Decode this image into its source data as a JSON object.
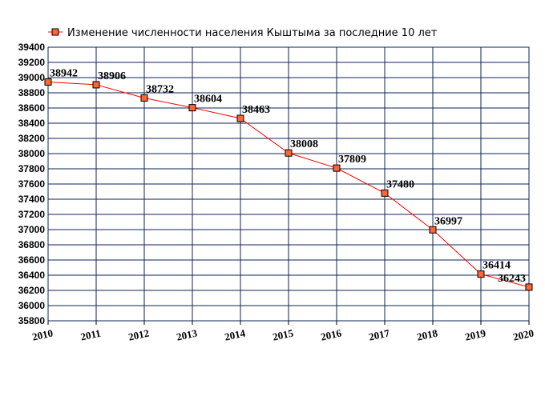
{
  "chart_data": {
    "type": "line",
    "legend": "Изменение численности населения Кыштыма за последние 10 лет",
    "legend_position": "top",
    "x": [
      "2010",
      "2011",
      "2012",
      "2013",
      "2014",
      "2015",
      "2016",
      "2017",
      "2018",
      "2019",
      "2020"
    ],
    "series": [
      {
        "name": "Изменение численности населения Кыштыма за последние 10 лет",
        "values": [
          38942,
          38906,
          38732,
          38604,
          38463,
          38008,
          37809,
          37480,
          36997,
          36414,
          36243
        ],
        "labels": [
          "38942",
          "38906",
          "38732",
          "38604",
          "38463",
          "38008",
          "37809",
          "37480",
          "36997",
          "36414",
          "36243"
        ]
      }
    ],
    "ylim": [
      35800,
      39400
    ],
    "y_ticks": [
      "35800",
      "36000",
      "36200",
      "36400",
      "36600",
      "36800",
      "37000",
      "37200",
      "37400",
      "37600",
      "37800",
      "38000",
      "38200",
      "38400",
      "38600",
      "38800",
      "39000",
      "39200",
      "39400"
    ],
    "grid": true,
    "colors": {
      "line": "#ff0000",
      "marker_fill": "#ff6633",
      "marker_stroke": "#000000",
      "grid": "#0b2454"
    }
  }
}
